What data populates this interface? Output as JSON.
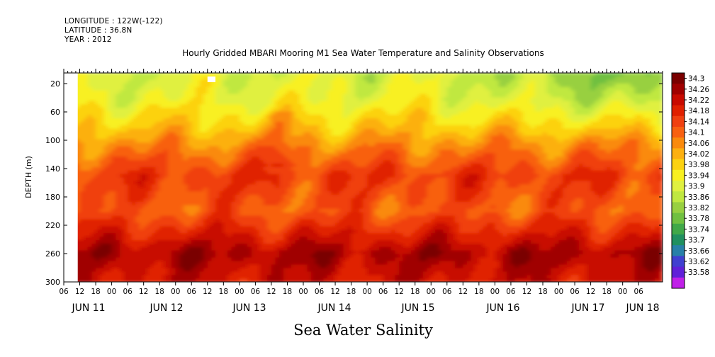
{
  "header": {
    "longitude": "LONGITUDE : 122W(-122)",
    "latitude": "LATITUDE : 36.8N",
    "year": "YEAR : 2012"
  },
  "chart_data": {
    "type": "heatmap",
    "title": "Hourly Gridded MBARI Mooring M1 Sea Water Temperature and Salinity Observations",
    "variable": "Sea Water Salinity",
    "ylabel": "DEPTH (m)",
    "y_reversed": true,
    "ylim": [
      300,
      5
    ],
    "yticks": [
      20,
      60,
      100,
      140,
      180,
      220,
      260,
      300
    ],
    "xlim_hours": [
      0,
      300
    ],
    "x_hour_ticks": [
      "06",
      "12",
      "18",
      "00",
      "06",
      "12",
      "18",
      "00",
      "06",
      "12",
      "18",
      "00",
      "06",
      "12",
      "18",
      "00",
      "06",
      "12",
      "18",
      "00",
      "06",
      "12",
      "18",
      "00",
      "06",
      "12",
      "18",
      "00",
      "06",
      "12",
      "18",
      "00",
      "06",
      "12",
      "18",
      "00",
      "06"
    ],
    "x_day_labels": [
      {
        "label": "JUN 11",
        "hour": 12
      },
      {
        "label": "JUN 12",
        "hour": 36
      },
      {
        "label": "JUN 13",
        "hour": 60
      },
      {
        "label": "JUN 14",
        "hour": 84
      },
      {
        "label": "JUN 15",
        "hour": 108
      },
      {
        "label": "JUN 16",
        "hour": 132
      },
      {
        "label": "JUN 17",
        "hour": 156
      },
      {
        "label": "JUN 18",
        "hour": 168
      }
    ],
    "colorbar": {
      "levels": [
        "34.3",
        "34.26",
        "34.22",
        "34.18",
        "34.14",
        "34.1",
        "34.06",
        "34.02",
        "33.98",
        "33.94",
        "33.9",
        "33.86",
        "33.82",
        "33.78",
        "33.74",
        "33.7",
        "33.66",
        "33.62",
        "33.58"
      ],
      "colors": [
        "#7a0000",
        "#a00000",
        "#c80a00",
        "#e02000",
        "#f04010",
        "#f86010",
        "#fa8a0c",
        "#fcb010",
        "#fcd210",
        "#f8f020",
        "#e0f040",
        "#c0e840",
        "#98d040",
        "#70c040",
        "#40a848",
        "#209060",
        "#2880a8",
        "#4040d0",
        "#6020d8",
        "#c020e8"
      ]
    },
    "no_data": [
      {
        "x_hours": [
          0,
          7
        ],
        "depth": [
          5,
          300
        ]
      },
      {
        "x_hours": [
          72,
          76
        ],
        "depth": [
          10,
          18
        ]
      }
    ],
    "depth_profile": [
      {
        "depth": 10,
        "salinity": 33.9
      },
      {
        "depth": 40,
        "salinity": 33.92
      },
      {
        "depth": 80,
        "salinity": 33.99
      },
      {
        "depth": 110,
        "salinity": 34.06
      },
      {
        "depth": 150,
        "salinity": 34.14
      },
      {
        "depth": 200,
        "salinity": 34.1
      },
      {
        "depth": 235,
        "salinity": 34.18
      },
      {
        "depth": 260,
        "salinity": 34.24
      },
      {
        "depth": 290,
        "salinity": 34.2
      }
    ]
  }
}
